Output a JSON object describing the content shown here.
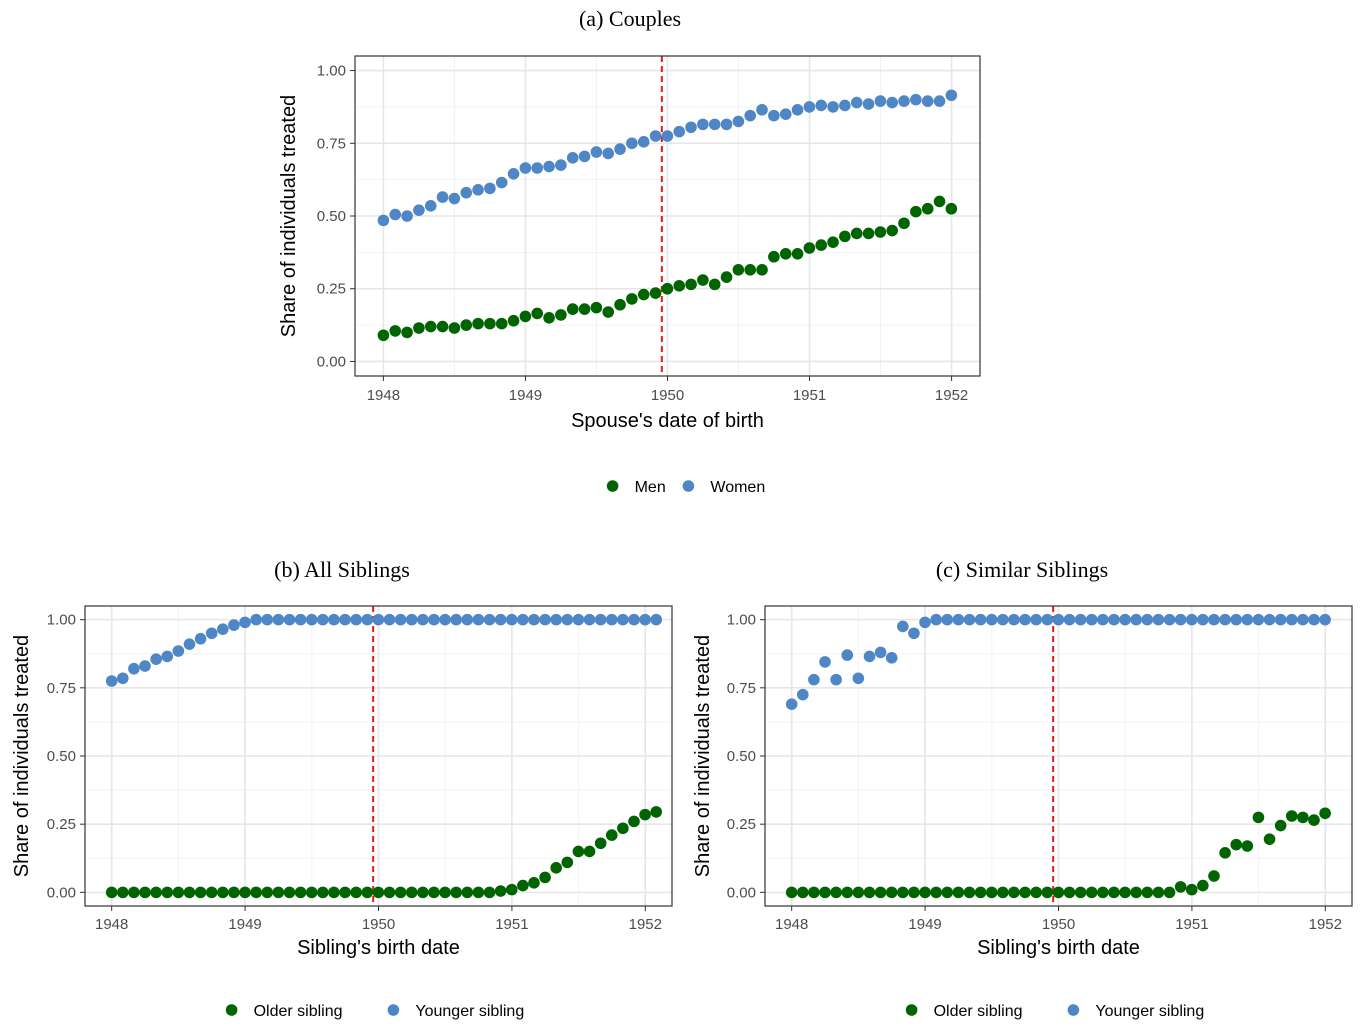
{
  "colors": {
    "green": "#006400",
    "blue": "#4f86c6",
    "cutoff": "#e31a1c",
    "grid_major": "#e6e6e6",
    "grid_minor": "#f2f2f2",
    "frame": "#333333"
  },
  "chart_data": [
    {
      "id": "a",
      "type": "scatter",
      "title": "(a) Couples",
      "xlabel": "Spouse's date of birth",
      "ylabel": "Share of individuals treated",
      "xlim": [
        1947.8,
        1952.2
      ],
      "ylim": [
        -0.05,
        1.05
      ],
      "x_ticks": [
        1948,
        1949,
        1950,
        1951,
        1952
      ],
      "x_tick_labels": [
        "1948",
        "1949",
        "1950",
        "1951",
        "1952"
      ],
      "y_ticks": [
        0,
        0.25,
        0.5,
        0.75,
        1
      ],
      "y_tick_labels": [
        "0.00",
        "0.25",
        "0.50",
        "0.75",
        "1.00"
      ],
      "cutoff_x": 1949.96,
      "x_start": 1948,
      "x_step": 0.0833,
      "grid": true,
      "legend_position": "bottom",
      "series": [
        {
          "name": "Men",
          "color_key": "green",
          "values": [
            0.09,
            0.105,
            0.1,
            0.115,
            0.12,
            0.12,
            0.115,
            0.125,
            0.13,
            0.13,
            0.13,
            0.14,
            0.155,
            0.165,
            0.15,
            0.16,
            0.18,
            0.18,
            0.185,
            0.17,
            0.195,
            0.215,
            0.23,
            0.235,
            0.25,
            0.26,
            0.265,
            0.28,
            0.265,
            0.29,
            0.315,
            0.315,
            0.315,
            0.36,
            0.37,
            0.37,
            0.39,
            0.4,
            0.41,
            0.43,
            0.44,
            0.44,
            0.445,
            0.45,
            0.475,
            0.515,
            0.525,
            0.55,
            0.525
          ]
        },
        {
          "name": "Women",
          "color_key": "blue",
          "values": [
            0.485,
            0.505,
            0.5,
            0.52,
            0.535,
            0.565,
            0.56,
            0.58,
            0.59,
            0.595,
            0.615,
            0.645,
            0.665,
            0.665,
            0.67,
            0.675,
            0.7,
            0.705,
            0.72,
            0.715,
            0.73,
            0.75,
            0.755,
            0.775,
            0.775,
            0.79,
            0.805,
            0.815,
            0.815,
            0.815,
            0.825,
            0.845,
            0.865,
            0.845,
            0.85,
            0.865,
            0.875,
            0.88,
            0.875,
            0.88,
            0.89,
            0.885,
            0.895,
            0.89,
            0.895,
            0.9,
            0.895,
            0.895,
            0.915
          ]
        }
      ]
    },
    {
      "id": "b",
      "type": "scatter",
      "title": "(b) All Siblings",
      "xlabel": "Sibling's birth date",
      "ylabel": "Share of individuals treated",
      "xlim": [
        1947.8,
        1952.2
      ],
      "ylim": [
        -0.05,
        1.05
      ],
      "x_ticks": [
        1948,
        1949,
        1950,
        1951,
        1952
      ],
      "x_tick_labels": [
        "1948",
        "1949",
        "1950",
        "1951",
        "1952"
      ],
      "y_ticks": [
        0,
        0.25,
        0.5,
        0.75,
        1
      ],
      "y_tick_labels": [
        "0.00",
        "0.25",
        "0.50",
        "0.75",
        "1.00"
      ],
      "cutoff_x": 1949.96,
      "x_start": 1948,
      "x_step": 0.0833,
      "grid": true,
      "legend_position": "bottom",
      "series": [
        {
          "name": "Older sibling",
          "color_key": "green",
          "values": [
            0,
            0,
            0,
            0,
            0,
            0,
            0,
            0,
            0,
            0,
            0,
            0,
            0,
            0,
            0,
            0,
            0,
            0,
            0,
            0,
            0,
            0,
            0,
            0,
            0,
            0,
            0,
            0,
            0,
            0,
            0,
            0,
            0,
            0,
            0,
            0.005,
            0.01,
            0.025,
            0.035,
            0.055,
            0.09,
            0.11,
            0.15,
            0.15,
            0.18,
            0.21,
            0.235,
            0.26,
            0.285,
            0.295
          ]
        },
        {
          "name": "Younger sibling",
          "color_key": "blue",
          "values": [
            0.775,
            0.785,
            0.82,
            0.83,
            0.855,
            0.865,
            0.885,
            0.91,
            0.93,
            0.95,
            0.965,
            0.98,
            0.99,
            1,
            1,
            1,
            1,
            1,
            1,
            1,
            1,
            1,
            1,
            1,
            1,
            1,
            1,
            1,
            1,
            1,
            1,
            1,
            1,
            1,
            1,
            1,
            1,
            1,
            1,
            1,
            1,
            1,
            1,
            1,
            1,
            1,
            1,
            1,
            1,
            1
          ]
        }
      ]
    },
    {
      "id": "c",
      "type": "scatter",
      "title": "(c) Similar Siblings",
      "xlabel": "Sibling's birth date",
      "ylabel": "Share of individuals treated",
      "xlim": [
        1947.8,
        1952.2
      ],
      "ylim": [
        -0.05,
        1.05
      ],
      "x_ticks": [
        1948,
        1949,
        1950,
        1951,
        1952
      ],
      "x_tick_labels": [
        "1948",
        "1949",
        "1950",
        "1951",
        "1952"
      ],
      "y_ticks": [
        0,
        0.25,
        0.5,
        0.75,
        1
      ],
      "y_tick_labels": [
        "0.00",
        "0.25",
        "0.50",
        "0.75",
        "1.00"
      ],
      "cutoff_x": 1949.96,
      "x_start": 1948,
      "x_step": 0.0833,
      "grid": true,
      "legend_position": "bottom",
      "series": [
        {
          "name": "Older sibling",
          "color_key": "green",
          "values": [
            0,
            0,
            0,
            0,
            0,
            0,
            0,
            0,
            0,
            0,
            0,
            0,
            0,
            0,
            0,
            0,
            0,
            0,
            0,
            0,
            0,
            0,
            0,
            0,
            0,
            0,
            0,
            0,
            0,
            0,
            0,
            0,
            0,
            0,
            0,
            0.02,
            0.01,
            0.025,
            0.06,
            0.145,
            0.175,
            0.17,
            0.275,
            0.195,
            0.245,
            0.28,
            0.275,
            0.265,
            0.29
          ]
        },
        {
          "name": "Younger sibling",
          "color_key": "blue",
          "values": [
            0.69,
            0.725,
            0.78,
            0.845,
            0.78,
            0.87,
            0.785,
            0.865,
            0.88,
            0.86,
            0.975,
            0.95,
            0.99,
            1,
            1,
            1,
            1,
            1,
            1,
            1,
            1,
            1,
            1,
            1,
            1,
            1,
            1,
            1,
            1,
            1,
            1,
            1,
            1,
            1,
            1,
            1,
            1,
            1,
            1,
            1,
            1,
            1,
            1,
            1,
            1,
            1,
            1,
            1,
            1
          ]
        }
      ]
    }
  ]
}
